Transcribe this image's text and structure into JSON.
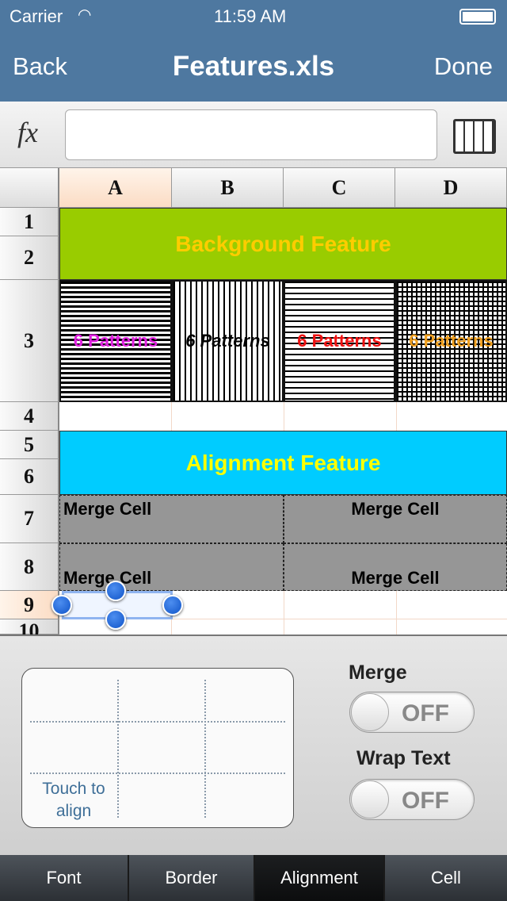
{
  "status": {
    "carrier": "Carrier",
    "time": "11:59 AM"
  },
  "nav": {
    "back": "Back",
    "title": "Features.xls",
    "done": "Done"
  },
  "formula": {
    "fx": "fx",
    "value": ""
  },
  "columns": [
    "A",
    "B",
    "C",
    "D"
  ],
  "rows": [
    "1",
    "2",
    "3",
    "4",
    "5",
    "6",
    "7",
    "8",
    "9",
    "10"
  ],
  "cells": {
    "background_feature": "Background Feature",
    "patterns": [
      {
        "text": "6 Patterns",
        "color": "#e020e0"
      },
      {
        "text": "6 Patterns",
        "color": "#000000"
      },
      {
        "text": "6 Patterns",
        "color": "#ee1111"
      },
      {
        "text": "6 Patterns",
        "color": "#f0a020"
      }
    ],
    "alignment_feature": "Alignment Feature",
    "merge_cells": [
      "Merge Cell",
      "Merge Cell",
      "Merge Cell",
      "Merge Cell"
    ]
  },
  "colors": {
    "nav": "#4e78a0",
    "bg_feature": "#99cc00",
    "bg_feature_text": "#ffcc00",
    "align_feature": "#00ccff",
    "align_feature_text": "#ffff00",
    "merge": "#969696"
  },
  "panel": {
    "touch_hint": "Touch to align",
    "merge_label": "Merge",
    "merge_state": "OFF",
    "wrap_label": "Wrap Text",
    "wrap_state": "OFF"
  },
  "tabs": [
    {
      "label": "Font"
    },
    {
      "label": "Border"
    },
    {
      "label": "Alignment",
      "active": true
    },
    {
      "label": "Cell"
    }
  ]
}
